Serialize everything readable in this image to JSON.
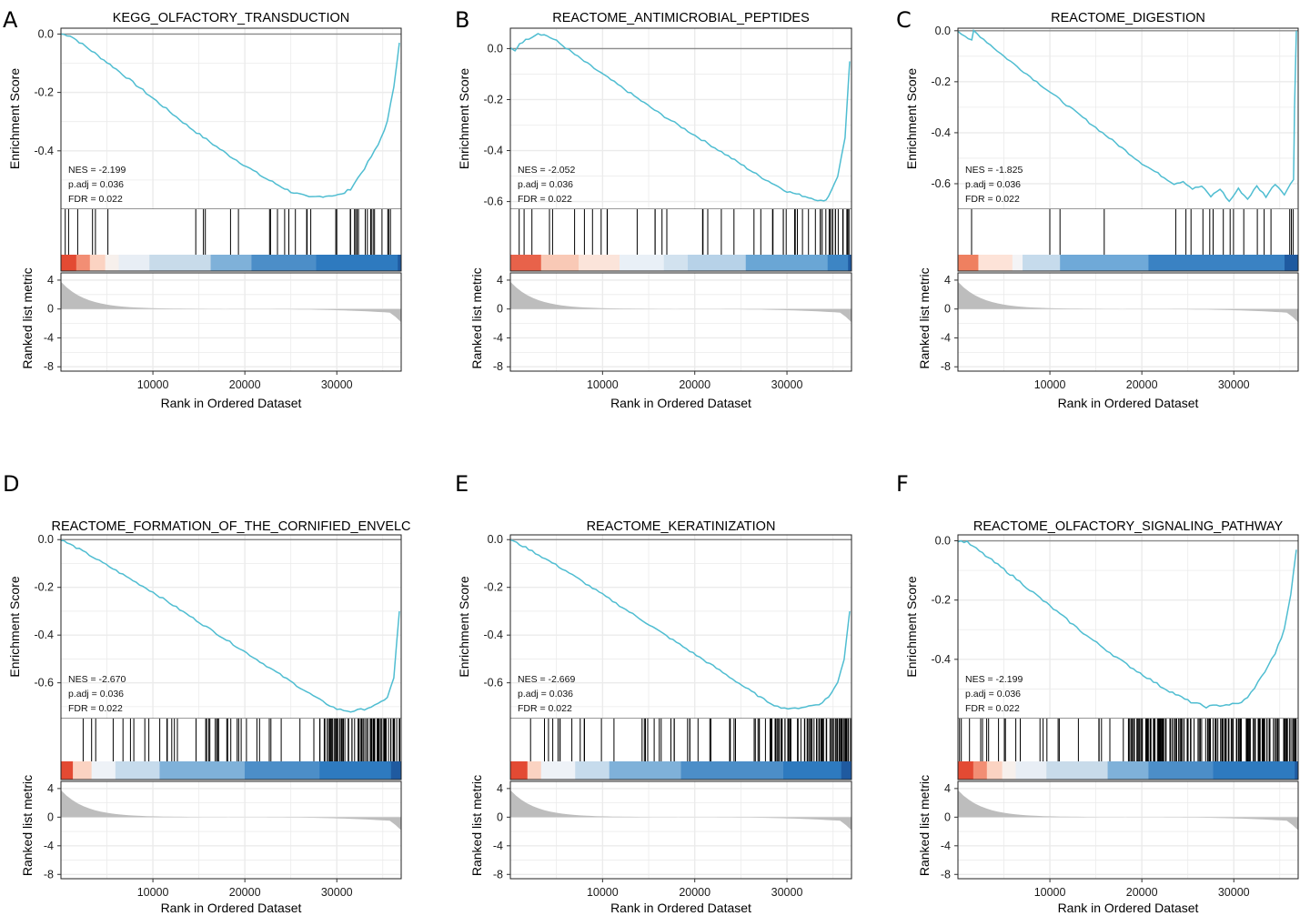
{
  "chart_data": [
    {
      "type": "line",
      "panel_label": "A",
      "title": "KEGG_OLFACTORY_TRANSDUCTION",
      "ylabel": "Enrichment Score",
      "ylim": [
        -0.6,
        0.02
      ],
      "yticks": [
        0.0,
        -0.2,
        -0.4
      ],
      "ytick_labels": [
        "0.0",
        "-0.2",
        "-0.4"
      ],
      "es_curve": {
        "x": [
          0,
          1000,
          3000,
          6000,
          10000,
          14000,
          18000,
          22000,
          25000,
          27000,
          28500,
          30500,
          31500,
          33000,
          34500,
          35500,
          36200,
          36800
        ],
        "y": [
          0,
          -0.005,
          -0.05,
          -0.12,
          -0.22,
          -0.32,
          -0.41,
          -0.49,
          -0.54,
          -0.56,
          -0.555,
          -0.55,
          -0.53,
          -0.46,
          -0.38,
          -0.3,
          -0.18,
          -0.03
        ]
      },
      "annotations": [
        "NES = -2.199",
        "p.adj = 0.036",
        "FDR = 0.022"
      ],
      "hit_profile": [
        [
          0.0,
          0.6,
          0.02
        ],
        [
          0.6,
          0.85,
          0.05
        ],
        [
          0.85,
          1.0,
          0.12
        ]
      ],
      "color_segments": [
        {
          "to": 0.045,
          "color": "#e34a33"
        },
        {
          "to": 0.085,
          "color": "#f28e74"
        },
        {
          "to": 0.13,
          "color": "#fbd3c2"
        },
        {
          "to": 0.17,
          "color": "#f7f0ec"
        },
        {
          "to": 0.26,
          "color": "#e8eef5"
        },
        {
          "to": 0.44,
          "color": "#c8dbea"
        },
        {
          "to": 0.56,
          "color": "#7fb1d9"
        },
        {
          "to": 0.75,
          "color": "#4c8ec8"
        },
        {
          "to": 0.99,
          "color": "#2e7abf"
        },
        {
          "to": 1.0,
          "color": "#1f5aa0"
        }
      ],
      "ylabel_metric": "Ranked list metric",
      "xlabel": "Rank in Ordered Dataset",
      "xticks": [
        10000,
        20000,
        30000
      ],
      "xtick_labels": [
        "10000",
        "20000",
        "30000"
      ],
      "metric_yticks": [
        4,
        0,
        -4,
        -8
      ],
      "metric_ytick_labels": [
        "4",
        "0",
        "-4",
        "-8"
      ]
    },
    {
      "type": "line",
      "panel_label": "B",
      "title": "REACTOME_ANTIMICROBIAL_PEPTIDES",
      "ylabel": "Enrichment Score",
      "ylim": [
        -0.63,
        0.08
      ],
      "yticks": [
        0.0,
        -0.2,
        -0.4,
        -0.6
      ],
      "ytick_labels": [
        "0.0",
        "-0.2",
        "-0.4",
        "-0.6"
      ],
      "es_curve": {
        "x": [
          0,
          500,
          1000,
          2000,
          3000,
          4000,
          5000,
          8000,
          12000,
          16000,
          20000,
          24000,
          27000,
          30000,
          32000,
          33000,
          34000,
          34500,
          35500,
          36300,
          36800
        ],
        "y": [
          0,
          -0.01,
          0.02,
          0.04,
          0.06,
          0.05,
          0.03,
          -0.05,
          -0.15,
          -0.25,
          -0.34,
          -0.43,
          -0.5,
          -0.56,
          -0.58,
          -0.59,
          -0.6,
          -0.58,
          -0.5,
          -0.35,
          -0.05
        ]
      },
      "annotations": [
        "NES = -2.052",
        "p.adj = 0.036",
        "FDR = 0.022"
      ],
      "hit_profile": [
        [
          0.0,
          0.3,
          0.04
        ],
        [
          0.3,
          0.75,
          0.03
        ],
        [
          0.75,
          0.9,
          0.08
        ],
        [
          0.9,
          1.0,
          0.2
        ]
      ],
      "color_segments": [
        {
          "to": 0.09,
          "color": "#e8624a"
        },
        {
          "to": 0.2,
          "color": "#f9c9b6"
        },
        {
          "to": 0.32,
          "color": "#fbe4da"
        },
        {
          "to": 0.45,
          "color": "#e9f0f7"
        },
        {
          "to": 0.52,
          "color": "#d2e2ef"
        },
        {
          "to": 0.69,
          "color": "#b7d2e8"
        },
        {
          "to": 0.93,
          "color": "#6aa6d5"
        },
        {
          "to": 0.99,
          "color": "#3d85c4"
        },
        {
          "to": 1.0,
          "color": "#1f5aa0"
        }
      ],
      "ylabel_metric": "Ranked list metric",
      "xlabel": "Rank in Ordered Dataset",
      "xticks": [
        10000,
        20000,
        30000
      ],
      "xtick_labels": [
        "10000",
        "20000",
        "30000"
      ],
      "metric_yticks": [
        4,
        0,
        -4,
        -8
      ],
      "metric_ytick_labels": [
        "4",
        "0",
        "-4",
        "-8"
      ]
    },
    {
      "type": "line",
      "panel_label": "C",
      "title": "REACTOME_DIGESTION",
      "ylabel": "Enrichment Score",
      "ylim": [
        -0.7,
        0.01
      ],
      "yticks": [
        0.0,
        -0.2,
        -0.4,
        -0.6
      ],
      "ytick_labels": [
        "0.0",
        "-0.2",
        "-0.4",
        "-0.6"
      ],
      "es_curve": {
        "x": [
          0,
          1500,
          1700,
          5000,
          10000,
          15000,
          20000,
          23500,
          24500,
          25500,
          26500,
          27500,
          28500,
          29500,
          30500,
          31500,
          32500,
          33500,
          34500,
          35500,
          36200,
          36500,
          36600,
          36800
        ],
        "y": [
          0,
          -0.04,
          0.0,
          -0.1,
          -0.24,
          -0.38,
          -0.52,
          -0.6,
          -0.59,
          -0.62,
          -0.61,
          -0.65,
          -0.62,
          -0.67,
          -0.62,
          -0.66,
          -0.61,
          -0.65,
          -0.6,
          -0.64,
          -0.6,
          -0.58,
          -0.3,
          0.0
        ]
      },
      "annotations": [
        "NES = -1.825",
        "p.adj = 0.036",
        "FDR = 0.022"
      ],
      "hit_profile": [],
      "hit_positions": [
        0.04,
        0.27,
        0.3,
        0.43,
        0.64,
        0.67,
        0.685,
        0.72,
        0.74,
        0.75,
        0.78,
        0.8,
        0.81,
        0.84,
        0.88,
        0.9,
        0.92,
        0.975,
        0.98,
        0.985
      ],
      "color_segments": [
        {
          "to": 0.06,
          "color": "#ef8060"
        },
        {
          "to": 0.16,
          "color": "#fde3d8"
        },
        {
          "to": 0.19,
          "color": "#f4f4f6"
        },
        {
          "to": 0.3,
          "color": "#c6dbec"
        },
        {
          "to": 0.56,
          "color": "#6fa9d8"
        },
        {
          "to": 0.96,
          "color": "#3a82c3"
        },
        {
          "to": 1.0,
          "color": "#1f5aa0"
        }
      ],
      "ylabel_metric": "Ranked list metric",
      "xlabel": "Rank in Ordered Dataset",
      "xticks": [
        10000,
        20000,
        30000
      ],
      "xtick_labels": [
        "10000",
        "20000",
        "30000"
      ],
      "metric_yticks": [
        4,
        0,
        -4,
        -8
      ],
      "metric_ytick_labels": [
        "4",
        "0",
        "-4",
        "-8"
      ]
    },
    {
      "type": "line",
      "panel_label": "D",
      "title": "REACTOME_FORMATION_OF_THE_CORNIFIED_ENVELC",
      "ylabel": "Enrichment Score",
      "ylim": [
        -0.75,
        0.02
      ],
      "yticks": [
        0.0,
        -0.2,
        -0.4,
        -0.6
      ],
      "ytick_labels": [
        "0.0",
        "-0.2",
        "-0.4",
        "-0.6"
      ],
      "es_curve": {
        "x": [
          0,
          2000,
          6000,
          10000,
          14000,
          18000,
          22000,
          26000,
          28500,
          30000,
          31500,
          33000,
          34500,
          35500,
          36200,
          36800
        ],
        "y": [
          0,
          -0.04,
          -0.13,
          -0.22,
          -0.32,
          -0.42,
          -0.52,
          -0.62,
          -0.68,
          -0.71,
          -0.72,
          -0.71,
          -0.69,
          -0.66,
          -0.58,
          -0.3
        ]
      },
      "annotations": [
        "NES = -2.670",
        "p.adj = 0.036",
        "FDR = 0.022"
      ],
      "hit_profile": [
        [
          0.05,
          0.4,
          0.05
        ],
        [
          0.4,
          0.76,
          0.07
        ],
        [
          0.76,
          1.0,
          0.35
        ]
      ],
      "color_segments": [
        {
          "to": 0.035,
          "color": "#e34a33"
        },
        {
          "to": 0.09,
          "color": "#fbd3c2"
        },
        {
          "to": 0.16,
          "color": "#eef2f7"
        },
        {
          "to": 0.29,
          "color": "#c6dbec"
        },
        {
          "to": 0.54,
          "color": "#7fb1d9"
        },
        {
          "to": 0.76,
          "color": "#4c8ec8"
        },
        {
          "to": 0.97,
          "color": "#2e7abf"
        },
        {
          "to": 1.0,
          "color": "#1f5aa0"
        }
      ],
      "ylabel_metric": "Ranked list metric",
      "xlabel": "Rank in Ordered Dataset",
      "xticks": [
        10000,
        20000,
        30000
      ],
      "xtick_labels": [
        "10000",
        "20000",
        "30000"
      ],
      "metric_yticks": [
        4,
        0,
        -4,
        -8
      ],
      "metric_ytick_labels": [
        "4",
        "0",
        "-4",
        "-8"
      ]
    },
    {
      "type": "line",
      "panel_label": "E",
      "title": "REACTOME_KERATINIZATION",
      "ylabel": "Enrichment Score",
      "ylim": [
        -0.75,
        0.02
      ],
      "yticks": [
        0.0,
        -0.2,
        -0.4,
        -0.6
      ],
      "ytick_labels": [
        "0.0",
        "-0.2",
        "-0.4",
        "-0.6"
      ],
      "es_curve": {
        "x": [
          0,
          2000,
          6000,
          10000,
          14000,
          18000,
          22000,
          25500,
          27500,
          29000,
          30500,
          32000,
          33500,
          34500,
          35500,
          36200,
          36800
        ],
        "y": [
          0,
          -0.04,
          -0.13,
          -0.23,
          -0.33,
          -0.43,
          -0.53,
          -0.62,
          -0.67,
          -0.7,
          -0.71,
          -0.7,
          -0.69,
          -0.66,
          -0.6,
          -0.5,
          -0.3
        ]
      },
      "annotations": [
        "NES = -2.669",
        "p.adj = 0.036",
        "FDR = 0.022"
      ],
      "hit_profile": [
        [
          0.05,
          0.4,
          0.05
        ],
        [
          0.4,
          0.76,
          0.07
        ],
        [
          0.76,
          1.0,
          0.35
        ]
      ],
      "color_segments": [
        {
          "to": 0.05,
          "color": "#e34a33"
        },
        {
          "to": 0.09,
          "color": "#fbd3c2"
        },
        {
          "to": 0.19,
          "color": "#eef2f7"
        },
        {
          "to": 0.29,
          "color": "#c6dbec"
        },
        {
          "to": 0.5,
          "color": "#7fb1d9"
        },
        {
          "to": 0.8,
          "color": "#4c8ec8"
        },
        {
          "to": 0.97,
          "color": "#2e7abf"
        },
        {
          "to": 1.0,
          "color": "#1f5aa0"
        }
      ],
      "ylabel_metric": "Ranked list metric",
      "xlabel": "Rank in Ordered Dataset",
      "xticks": [
        10000,
        20000,
        30000
      ],
      "xtick_labels": [
        "10000",
        "20000",
        "30000"
      ],
      "metric_yticks": [
        4,
        0,
        -4,
        -8
      ],
      "metric_ytick_labels": [
        "4",
        "0",
        "-4",
        "-8"
      ]
    },
    {
      "type": "line",
      "panel_label": "F",
      "title": "REACTOME_OLFACTORY_SIGNALING_PATHWAY",
      "ylabel": "Enrichment Score",
      "ylim": [
        -0.6,
        0.02
      ],
      "yticks": [
        0.0,
        -0.2,
        -0.4
      ],
      "ytick_labels": [
        "0.0",
        "-0.2",
        "-0.4"
      ],
      "es_curve": {
        "x": [
          0,
          1000,
          3000,
          6000,
          10000,
          14000,
          18000,
          22000,
          25000,
          27000,
          28500,
          30500,
          31500,
          33000,
          34500,
          35500,
          36200,
          36800
        ],
        "y": [
          0,
          -0.005,
          -0.05,
          -0.12,
          -0.22,
          -0.32,
          -0.41,
          -0.49,
          -0.54,
          -0.56,
          -0.555,
          -0.55,
          -0.53,
          -0.46,
          -0.38,
          -0.3,
          -0.18,
          -0.03
        ]
      },
      "annotations": [
        "NES = -2.199",
        "p.adj = 0.036",
        "FDR = 0.022"
      ],
      "hit_profile": [
        [
          0.0,
          0.5,
          0.05
        ],
        [
          0.5,
          1.0,
          0.4
        ]
      ],
      "color_segments": [
        {
          "to": 0.045,
          "color": "#e34a33"
        },
        {
          "to": 0.085,
          "color": "#f28e74"
        },
        {
          "to": 0.13,
          "color": "#fbd3c2"
        },
        {
          "to": 0.17,
          "color": "#f7f0ec"
        },
        {
          "to": 0.26,
          "color": "#e8eef5"
        },
        {
          "to": 0.44,
          "color": "#c8dbea"
        },
        {
          "to": 0.56,
          "color": "#7fb1d9"
        },
        {
          "to": 0.75,
          "color": "#4c8ec8"
        },
        {
          "to": 0.99,
          "color": "#2e7abf"
        },
        {
          "to": 1.0,
          "color": "#1f5aa0"
        }
      ],
      "ylabel_metric": "Ranked list metric",
      "xlabel": "Rank in Ordered Dataset",
      "xticks": [
        10000,
        20000,
        30000
      ],
      "xtick_labels": [
        "10000",
        "20000",
        "30000"
      ],
      "metric_yticks": [
        4,
        0,
        -4,
        -8
      ],
      "metric_ytick_labels": [
        "4",
        "0",
        "-4",
        "-8"
      ]
    }
  ],
  "colors": {
    "es_line": "#4fbdd1",
    "zero_line": "#8c8c8c",
    "grid": "#ebebeb",
    "metric_fill": "#bdbdbd",
    "hit_line": "#000000"
  }
}
